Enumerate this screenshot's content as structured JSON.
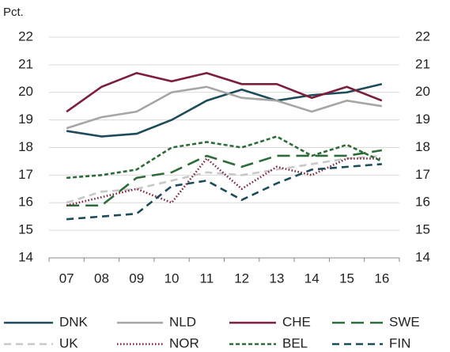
{
  "chart_data": {
    "type": "line",
    "unit_label": "Pct.",
    "categories": [
      "07",
      "08",
      "09",
      "10",
      "11",
      "12",
      "13",
      "14",
      "15",
      "16"
    ],
    "series": [
      {
        "name": "DNK",
        "color": "#1d4b5a",
        "style": "solid",
        "values": [
          18.6,
          18.4,
          18.5,
          19.0,
          19.7,
          20.1,
          19.7,
          19.9,
          20.0,
          20.3
        ]
      },
      {
        "name": "NLD",
        "color": "#a6a6a6",
        "style": "solid",
        "values": [
          18.7,
          19.1,
          19.3,
          20.0,
          20.2,
          19.8,
          19.7,
          19.3,
          19.7,
          19.5
        ]
      },
      {
        "name": "CHE",
        "color": "#7b1f3a",
        "style": "solid",
        "values": [
          19.3,
          20.2,
          20.7,
          20.4,
          20.7,
          20.3,
          20.3,
          19.8,
          20.2,
          19.7
        ]
      },
      {
        "name": "SWE",
        "color": "#2e6b3a",
        "style": "long-dash",
        "values": [
          15.9,
          15.9,
          16.9,
          17.1,
          17.7,
          17.3,
          17.7,
          17.7,
          17.7,
          17.9
        ]
      },
      {
        "name": "UK",
        "color": "#c8c8c8",
        "style": "dash",
        "values": [
          16.0,
          16.4,
          16.5,
          16.8,
          17.1,
          17.0,
          17.2,
          17.4,
          17.6,
          17.7
        ]
      },
      {
        "name": "NOR",
        "color": "#7b1f3a",
        "style": "dot",
        "values": [
          15.9,
          16.2,
          16.5,
          16.0,
          17.6,
          16.5,
          17.3,
          17.0,
          17.6,
          17.6
        ]
      },
      {
        "name": "BEL",
        "color": "#2e6b3a",
        "style": "short-dash",
        "values": [
          16.9,
          17.0,
          17.2,
          18.0,
          18.2,
          18.0,
          18.4,
          17.7,
          18.1,
          17.5
        ]
      },
      {
        "name": "FIN",
        "color": "#1d4b5a",
        "style": "dash",
        "values": [
          15.4,
          15.5,
          15.6,
          16.6,
          16.8,
          16.1,
          16.7,
          17.2,
          17.3,
          17.4
        ]
      }
    ],
    "ylim": [
      14,
      22
    ],
    "yticks": [
      14,
      15,
      16,
      17,
      18,
      19,
      20,
      21,
      22
    ],
    "y2lim": [
      14,
      22
    ],
    "y2ticks": [
      14,
      15,
      16,
      17,
      18,
      19,
      20,
      21,
      22
    ],
    "grid": true,
    "legend": "bottom"
  }
}
